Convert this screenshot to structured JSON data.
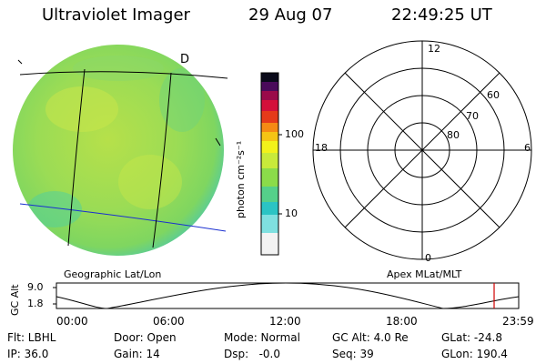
{
  "header": {
    "instrument": "Ultraviolet Imager",
    "date": "29 Aug 07",
    "time": "22:49:25 UT"
  },
  "image_panel": {
    "marker_label": "D",
    "label": "Geographic Lat/Lon",
    "cyan_color": "#2ad1c9",
    "green_color": "#7ed957",
    "yellow_color": "#c9e84a"
  },
  "colorbar": {
    "ylabel": "photon cm⁻²s⁻¹",
    "tick_high": "100",
    "tick_low": "10",
    "colors": [
      "#f2f2f2",
      "#7fe0e0",
      "#2bc4c4",
      "#55d08a",
      "#8bdc4a",
      "#c8ea3a",
      "#f2f21a",
      "#f5c414",
      "#f58a14",
      "#e53a1a",
      "#d4103a",
      "#9a0a4a",
      "#4a0a5a",
      "#0a0a1a"
    ]
  },
  "polar_panel": {
    "label": "Apex MLat/MLT",
    "mlt_top": "12",
    "mlt_left": "18",
    "mlt_right": "6",
    "mlt_bottom": "0",
    "ring_labels": [
      "60",
      "70",
      "80"
    ]
  },
  "altitude_panel": {
    "ylabel": "GC Alt",
    "ytick_top": "9.0",
    "ytick_bottom": "1.8",
    "xticks": [
      "00:00",
      "06:00",
      "12:00",
      "18:00",
      "23:59"
    ],
    "marker_color": "#d00000"
  },
  "footer": {
    "row1": {
      "flt": "Flt: LBHL",
      "door": "Door: Open",
      "mode": "Mode: Normal",
      "gc_alt": "GC Alt: 4.0 Re",
      "glat": "GLat: -24.8"
    },
    "row2": {
      "ip": "IP: 36.0",
      "gain": "Gain: 14",
      "dsp": "Dsp:   -0.0",
      "seq": "Seq: 39",
      "glon": "GLon: 190.4"
    }
  }
}
